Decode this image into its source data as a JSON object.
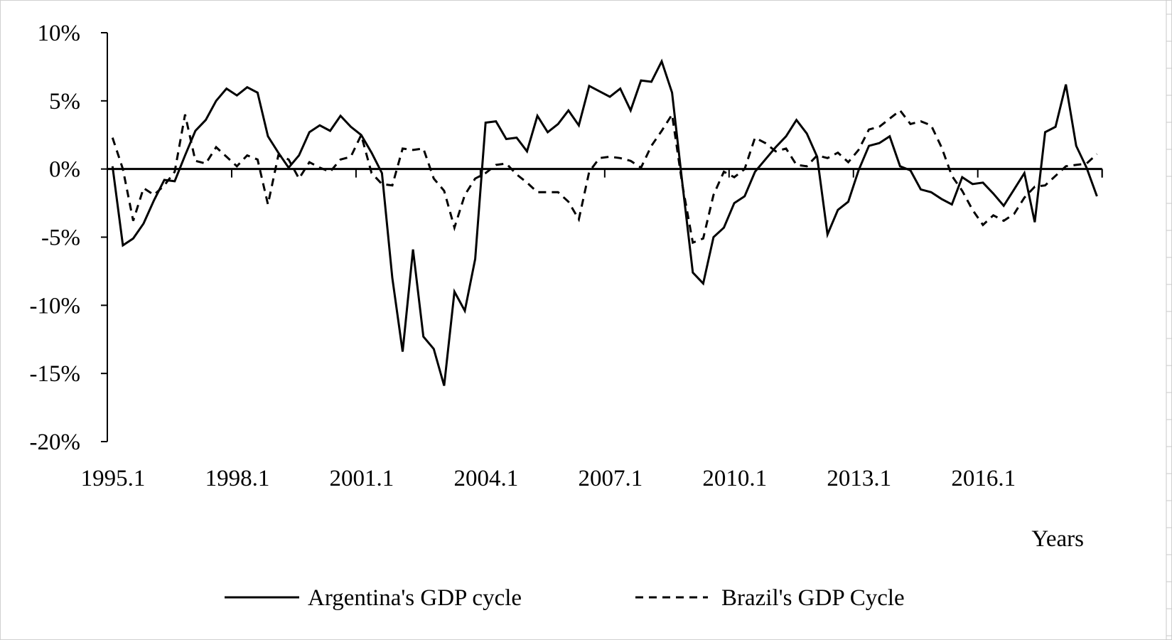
{
  "chart_data": {
    "type": "line",
    "title": "",
    "xlabel": "Years",
    "ylabel": "",
    "ylim": [
      -20,
      10
    ],
    "y_ticks": [
      10,
      5,
      0,
      -5,
      -10,
      -15,
      -20
    ],
    "y_tick_labels": [
      "10%",
      "5%",
      "0%",
      "-5%",
      "-10%",
      "-15%",
      "-20%"
    ],
    "x_start": "1995.1",
    "x_frequency": "quarterly",
    "x_tick_labels": [
      "1995.1",
      "1998.1",
      "2001.1",
      "2004.1",
      "2007.1",
      "2010.1",
      "2013.1",
      "2016.1"
    ],
    "grid": false,
    "legend_position": "bottom",
    "series": [
      {
        "name": "Argentina's GDP cycle",
        "style": "solid",
        "color": "#000000",
        "values": [
          0.2,
          -5.6,
          -5.1,
          -4.0,
          -2.3,
          -0.8,
          -0.9,
          1.0,
          2.8,
          3.6,
          5.0,
          5.9,
          5.4,
          6.0,
          5.6,
          2.4,
          1.2,
          0.1,
          1.0,
          2.7,
          3.2,
          2.8,
          3.9,
          3.1,
          2.5,
          1.2,
          -0.3,
          -8.0,
          -13.4,
          -5.9,
          -12.3,
          -13.2,
          -15.9,
          -9.0,
          -10.4,
          -6.6,
          3.4,
          3.5,
          2.2,
          2.3,
          1.3,
          3.9,
          2.7,
          3.3,
          4.3,
          3.2,
          6.1,
          5.7,
          5.3,
          5.9,
          4.3,
          6.5,
          6.4,
          7.9,
          5.6,
          -1.1,
          -7.6,
          -8.4,
          -5.0,
          -4.3,
          -2.5,
          -2.0,
          -0.2,
          0.7,
          1.6,
          2.4,
          3.6,
          2.6,
          0.9,
          -4.8,
          -3.0,
          -2.4,
          -0.1,
          1.7,
          1.9,
          2.4,
          0.2,
          -0.1,
          -1.5,
          -1.7,
          -2.2,
          -2.6,
          -0.6,
          -1.1,
          -1.0,
          -1.8,
          -2.7,
          -1.5,
          -0.3,
          -3.9,
          2.7,
          3.1,
          6.2,
          1.7,
          0.1,
          -2.0
        ]
      },
      {
        "name": "Brazil's GDP Cycle",
        "style": "dashed",
        "color": "#000000",
        "values": [
          2.3,
          0.0,
          -3.8,
          -1.4,
          -1.9,
          -1.2,
          -0.2,
          4.0,
          0.6,
          0.4,
          1.6,
          0.9,
          0.2,
          1.0,
          0.7,
          -2.6,
          1.0,
          0.7,
          -0.7,
          0.5,
          0.1,
          -0.2,
          0.7,
          0.9,
          2.5,
          -0.3,
          -1.1,
          -1.2,
          1.5,
          1.4,
          1.5,
          -0.7,
          -1.6,
          -4.3,
          -1.9,
          -0.7,
          -0.3,
          0.3,
          0.4,
          -0.4,
          -1.0,
          -1.7,
          -1.7,
          -1.7,
          -2.4,
          -3.7,
          -0.2,
          0.8,
          0.9,
          0.8,
          0.6,
          0.1,
          1.7,
          2.8,
          4.0,
          -1.2,
          -5.4,
          -5.1,
          -1.9,
          -0.2,
          -0.6,
          0.0,
          2.3,
          1.9,
          1.3,
          1.5,
          0.3,
          0.2,
          1.0,
          0.8,
          1.2,
          0.5,
          1.4,
          2.9,
          3.1,
          3.7,
          4.3,
          3.3,
          3.5,
          3.2,
          1.6,
          -0.5,
          -1.6,
          -3.0,
          -4.1,
          -3.4,
          -3.8,
          -3.3,
          -2.1,
          -1.3,
          -1.2,
          -0.5,
          0.2,
          0.3,
          0.4,
          1.1
        ]
      }
    ]
  }
}
